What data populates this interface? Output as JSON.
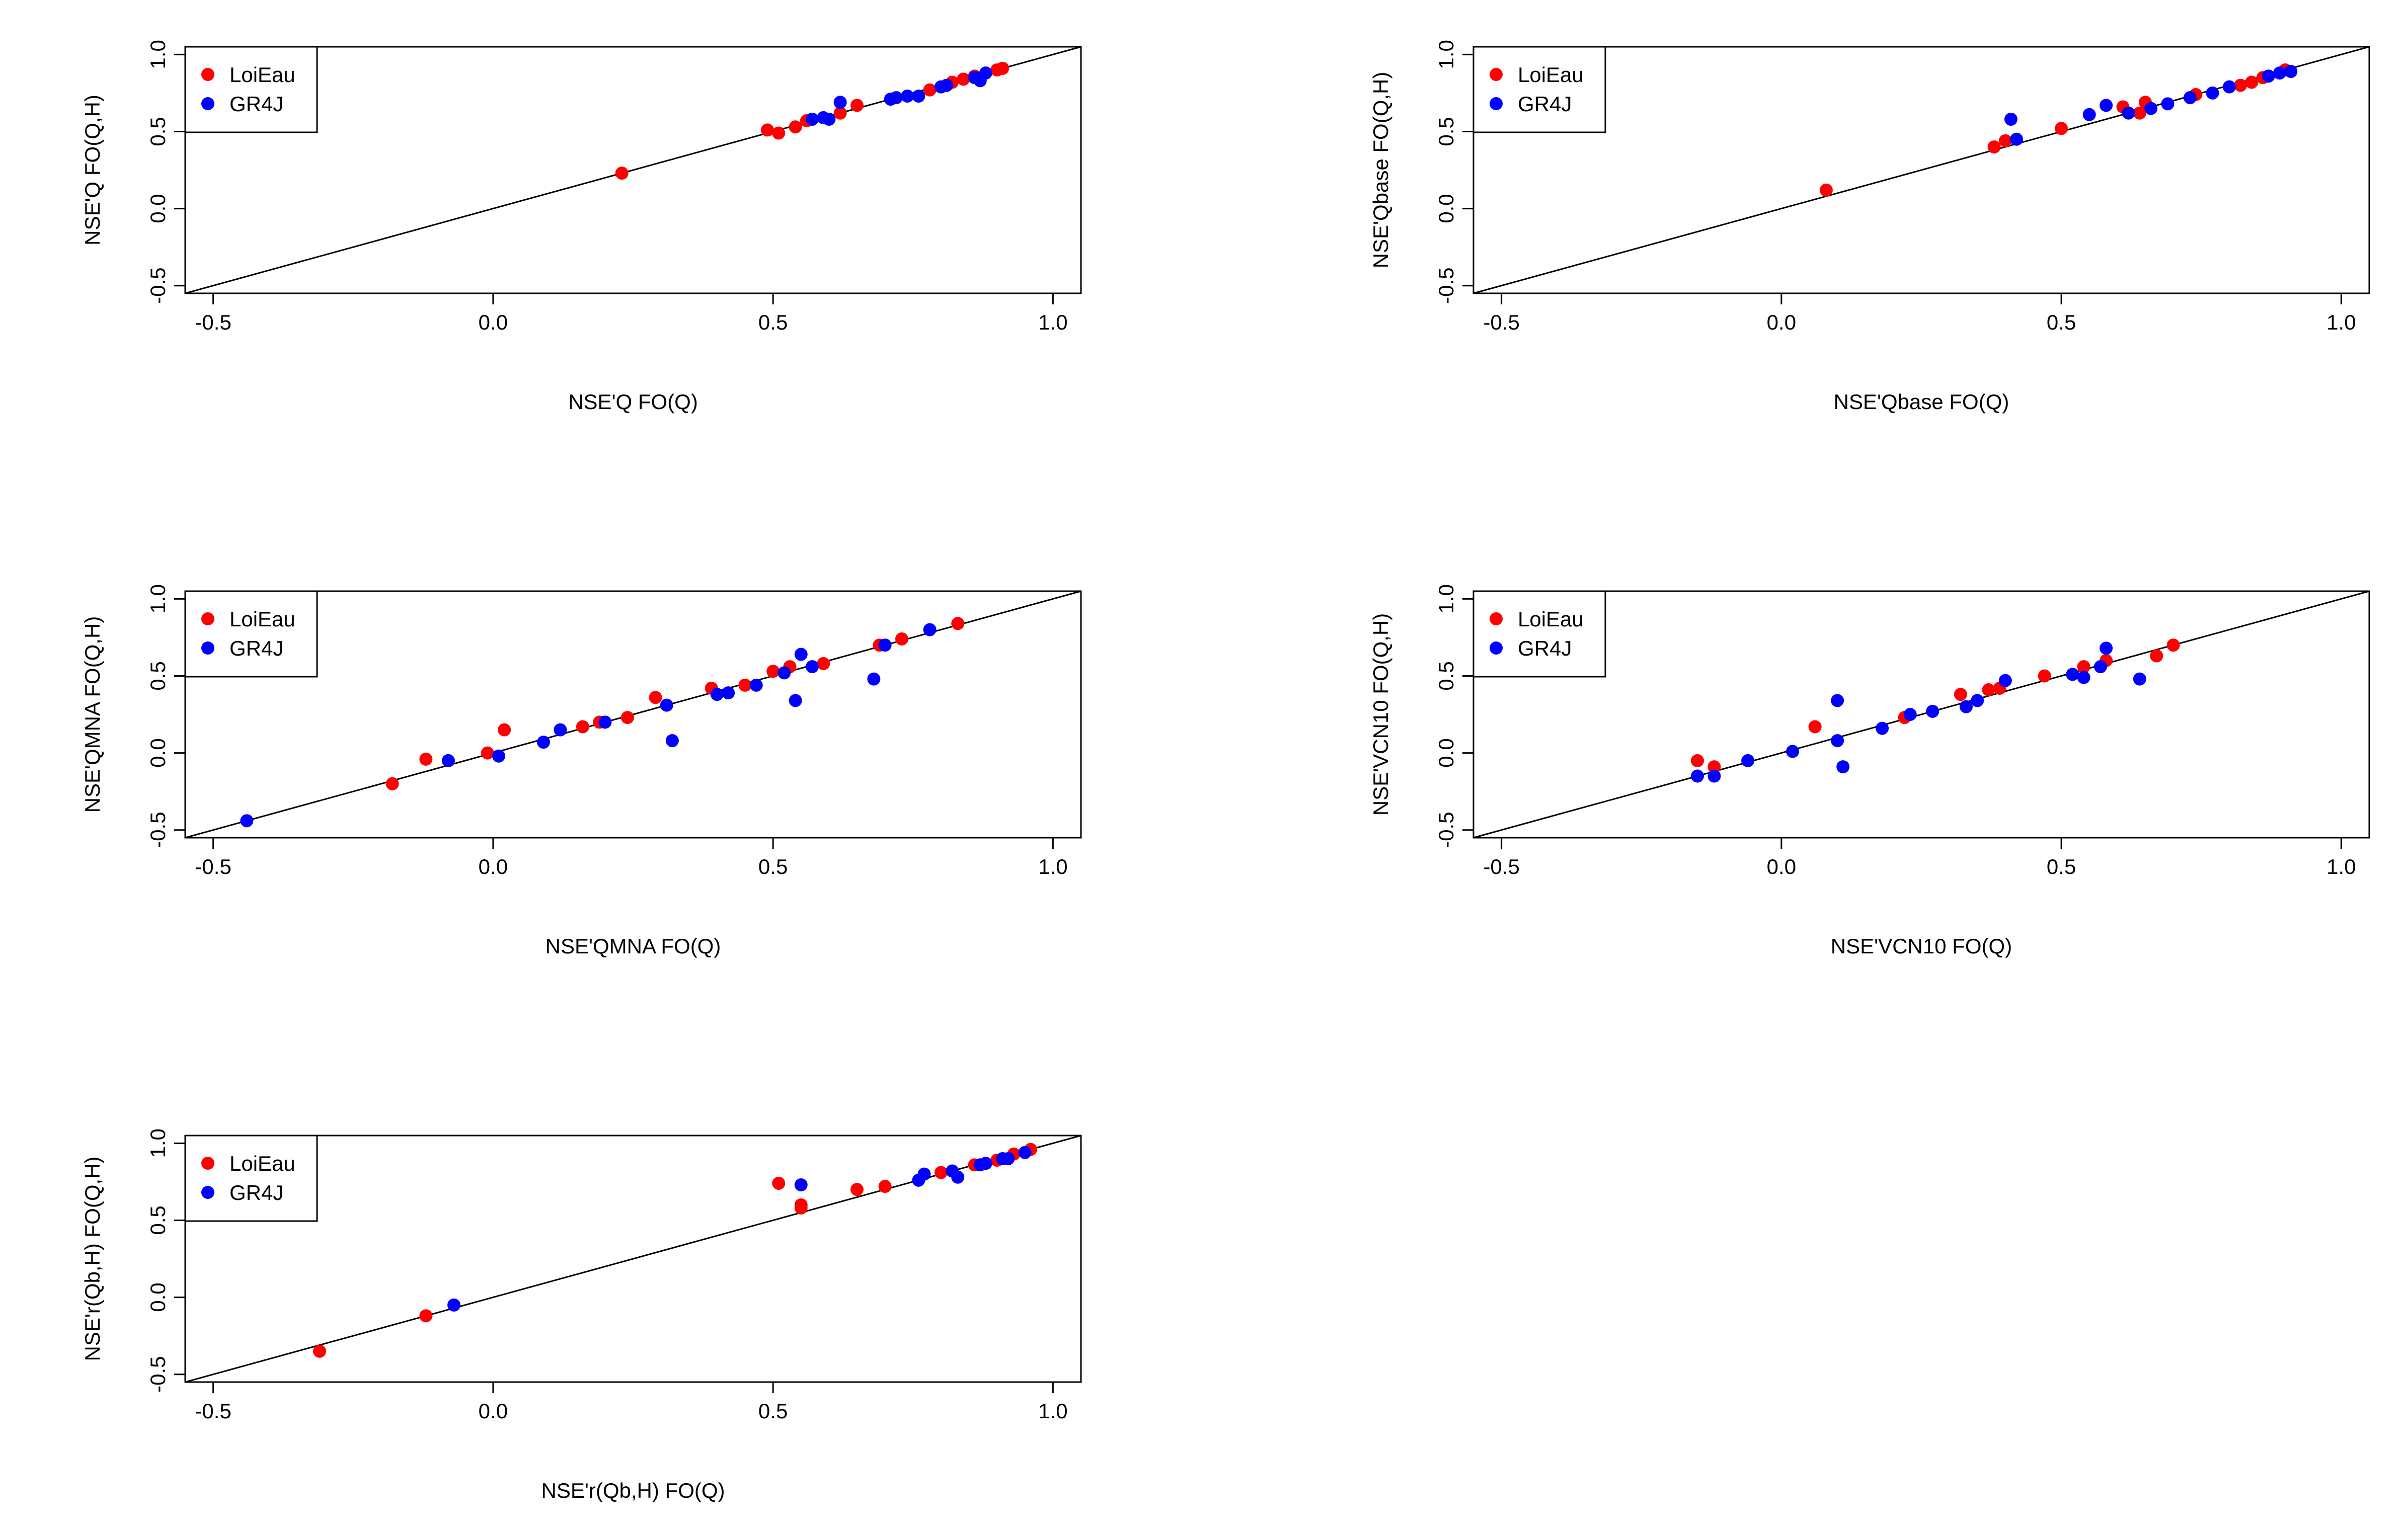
{
  "colors": {
    "LoiEau": "#ff0000",
    "GR4J": "#0000ff",
    "axis": "#000000"
  },
  "chart_data": [
    {
      "type": "scatter",
      "xlabel": "NSE'Q FO(Q)",
      "ylabel": "NSE'Q FO(Q,H)",
      "xlim": [
        -0.55,
        1.05
      ],
      "ylim": [
        -0.55,
        1.05
      ],
      "xticks": [
        "-0.5",
        "0.0",
        "0.5",
        "1.0"
      ],
      "yticks": [
        "-0.5",
        "0.0",
        "0.5",
        "1.0"
      ],
      "identity_line": true,
      "legend": {
        "position": "top-left",
        "entries": [
          "LoiEau",
          "GR4J"
        ]
      },
      "series": [
        {
          "name": "LoiEau",
          "color": "#ff0000",
          "points": [
            [
              0.23,
              0.23
            ],
            [
              0.49,
              0.51
            ],
            [
              0.51,
              0.49
            ],
            [
              0.54,
              0.53
            ],
            [
              0.56,
              0.57
            ],
            [
              0.62,
              0.62
            ],
            [
              0.65,
              0.67
            ],
            [
              0.78,
              0.77
            ],
            [
              0.82,
              0.82
            ],
            [
              0.84,
              0.84
            ],
            [
              0.86,
              0.86
            ],
            [
              0.9,
              0.9
            ],
            [
              0.91,
              0.91
            ]
          ]
        },
        {
          "name": "GR4J",
          "color": "#0000ff",
          "points": [
            [
              0.57,
              0.58
            ],
            [
              0.59,
              0.59
            ],
            [
              0.6,
              0.58
            ],
            [
              0.62,
              0.69
            ],
            [
              0.71,
              0.71
            ],
            [
              0.72,
              0.72
            ],
            [
              0.74,
              0.73
            ],
            [
              0.76,
              0.73
            ],
            [
              0.8,
              0.79
            ],
            [
              0.81,
              0.8
            ],
            [
              0.86,
              0.85
            ],
            [
              0.87,
              0.83
            ],
            [
              0.88,
              0.88
            ]
          ]
        }
      ]
    },
    {
      "type": "scatter",
      "xlabel": "NSE'Qbase FO(Q)",
      "ylabel": "NSE'Qbase FO(Q,H)",
      "xlim": [
        -0.55,
        1.05
      ],
      "ylim": [
        -0.55,
        1.05
      ],
      "xticks": [
        "-0.5",
        "0.0",
        "0.5",
        "1.0"
      ],
      "yticks": [
        "-0.5",
        "0.0",
        "0.5",
        "1.0"
      ],
      "identity_line": true,
      "legend": {
        "position": "top-left",
        "entries": [
          "LoiEau",
          "GR4J"
        ]
      },
      "series": [
        {
          "name": "LoiEau",
          "color": "#ff0000",
          "points": [
            [
              0.08,
              0.12
            ],
            [
              0.38,
              0.4
            ],
            [
              0.4,
              0.44
            ],
            [
              0.5,
              0.52
            ],
            [
              0.61,
              0.66
            ],
            [
              0.64,
              0.62
            ],
            [
              0.65,
              0.69
            ],
            [
              0.74,
              0.74
            ],
            [
              0.82,
              0.8
            ],
            [
              0.84,
              0.82
            ],
            [
              0.86,
              0.85
            ],
            [
              0.9,
              0.9
            ]
          ]
        },
        {
          "name": "GR4J",
          "color": "#0000ff",
          "points": [
            [
              0.41,
              0.58
            ],
            [
              0.42,
              0.45
            ],
            [
              0.55,
              0.61
            ],
            [
              0.58,
              0.67
            ],
            [
              0.62,
              0.62
            ],
            [
              0.66,
              0.65
            ],
            [
              0.69,
              0.68
            ],
            [
              0.73,
              0.72
            ],
            [
              0.77,
              0.75
            ],
            [
              0.8,
              0.79
            ],
            [
              0.87,
              0.86
            ],
            [
              0.89,
              0.88
            ],
            [
              0.91,
              0.89
            ]
          ]
        }
      ]
    },
    {
      "type": "scatter",
      "xlabel": "NSE'QMNA FO(Q)",
      "ylabel": "NSE'QMNA FO(Q,H)",
      "xlim": [
        -0.55,
        1.05
      ],
      "ylim": [
        -0.55,
        1.05
      ],
      "xticks": [
        "-0.5",
        "0.0",
        "0.5",
        "1.0"
      ],
      "yticks": [
        "-0.5",
        "0.0",
        "0.5",
        "1.0"
      ],
      "identity_line": true,
      "legend": {
        "position": "top-left",
        "entries": [
          "LoiEau",
          "GR4J"
        ]
      },
      "series": [
        {
          "name": "LoiEau",
          "color": "#ff0000",
          "points": [
            [
              -0.18,
              -0.2
            ],
            [
              -0.12,
              -0.04
            ],
            [
              -0.01,
              0.0
            ],
            [
              0.02,
              0.15
            ],
            [
              0.16,
              0.17
            ],
            [
              0.19,
              0.2
            ],
            [
              0.24,
              0.23
            ],
            [
              0.29,
              0.36
            ],
            [
              0.39,
              0.42
            ],
            [
              0.45,
              0.44
            ],
            [
              0.5,
              0.53
            ],
            [
              0.53,
              0.56
            ],
            [
              0.59,
              0.58
            ],
            [
              0.69,
              0.7
            ],
            [
              0.73,
              0.74
            ],
            [
              0.83,
              0.84
            ]
          ]
        },
        {
          "name": "GR4J",
          "color": "#0000ff",
          "points": [
            [
              -0.44,
              -0.44
            ],
            [
              -0.08,
              -0.05
            ],
            [
              0.01,
              -0.02
            ],
            [
              0.09,
              0.07
            ],
            [
              0.12,
              0.15
            ],
            [
              0.2,
              0.2
            ],
            [
              0.31,
              0.31
            ],
            [
              0.32,
              0.08
            ],
            [
              0.4,
              0.38
            ],
            [
              0.42,
              0.39
            ],
            [
              0.47,
              0.44
            ],
            [
              0.52,
              0.52
            ],
            [
              0.54,
              0.34
            ],
            [
              0.55,
              0.64
            ],
            [
              0.57,
              0.56
            ],
            [
              0.68,
              0.48
            ],
            [
              0.7,
              0.7
            ],
            [
              0.78,
              0.8
            ]
          ]
        }
      ]
    },
    {
      "type": "scatter",
      "xlabel": "NSE'VCN10 FO(Q)",
      "ylabel": "NSE'VCN10 FO(Q,H)",
      "xlim": [
        -0.55,
        1.05
      ],
      "ylim": [
        -0.55,
        1.05
      ],
      "xticks": [
        "-0.5",
        "0.0",
        "0.5",
        "1.0"
      ],
      "yticks": [
        "-0.5",
        "0.0",
        "0.5",
        "1.0"
      ],
      "identity_line": true,
      "legend": {
        "position": "top-left",
        "entries": [
          "LoiEau",
          "GR4J"
        ]
      },
      "series": [
        {
          "name": "LoiEau",
          "color": "#ff0000",
          "points": [
            [
              -0.15,
              -0.05
            ],
            [
              -0.12,
              -0.09
            ],
            [
              0.06,
              0.17
            ],
            [
              0.22,
              0.23
            ],
            [
              0.32,
              0.38
            ],
            [
              0.37,
              0.41
            ],
            [
              0.39,
              0.42
            ],
            [
              0.47,
              0.5
            ],
            [
              0.54,
              0.56
            ],
            [
              0.58,
              0.6
            ],
            [
              0.67,
              0.63
            ],
            [
              0.7,
              0.7
            ]
          ]
        },
        {
          "name": "GR4J",
          "color": "#0000ff",
          "points": [
            [
              -0.15,
              -0.15
            ],
            [
              -0.12,
              -0.15
            ],
            [
              -0.06,
              -0.05
            ],
            [
              0.02,
              0.01
            ],
            [
              0.1,
              0.08
            ],
            [
              0.1,
              0.34
            ],
            [
              0.11,
              -0.09
            ],
            [
              0.18,
              0.16
            ],
            [
              0.23,
              0.25
            ],
            [
              0.27,
              0.27
            ],
            [
              0.33,
              0.3
            ],
            [
              0.35,
              0.34
            ],
            [
              0.4,
              0.47
            ],
            [
              0.52,
              0.51
            ],
            [
              0.54,
              0.49
            ],
            [
              0.57,
              0.56
            ],
            [
              0.58,
              0.68
            ],
            [
              0.64,
              0.48
            ]
          ]
        }
      ]
    },
    {
      "type": "scatter",
      "xlabel": "NSE'r(Qb,H) FO(Q)",
      "ylabel": "NSE'r(Qb,H) FO(Q,H)",
      "xlim": [
        -0.55,
        1.05
      ],
      "ylim": [
        -0.55,
        1.05
      ],
      "xticks": [
        "-0.5",
        "0.0",
        "0.5",
        "1.0"
      ],
      "yticks": [
        "-0.5",
        "0.0",
        "0.5",
        "1.0"
      ],
      "identity_line": true,
      "legend": {
        "position": "top-left",
        "entries": [
          "LoiEau",
          "GR4J"
        ]
      },
      "series": [
        {
          "name": "LoiEau",
          "color": "#ff0000",
          "points": [
            [
              -0.31,
              -0.35
            ],
            [
              -0.12,
              -0.12
            ],
            [
              0.51,
              0.74
            ],
            [
              0.55,
              0.6
            ],
            [
              0.55,
              0.58
            ],
            [
              0.65,
              0.7
            ],
            [
              0.7,
              0.72
            ],
            [
              0.8,
              0.81
            ],
            [
              0.86,
              0.86
            ],
            [
              0.9,
              0.89
            ],
            [
              0.93,
              0.93
            ],
            [
              0.96,
              0.96
            ]
          ]
        },
        {
          "name": "GR4J",
          "color": "#0000ff",
          "points": [
            [
              -0.07,
              -0.05
            ],
            [
              0.55,
              0.73
            ],
            [
              0.76,
              0.76
            ],
            [
              0.77,
              0.8
            ],
            [
              0.82,
              0.82
            ],
            [
              0.83,
              0.78
            ],
            [
              0.87,
              0.86
            ],
            [
              0.88,
              0.87
            ],
            [
              0.91,
              0.9
            ],
            [
              0.92,
              0.9
            ],
            [
              0.95,
              0.94
            ]
          ]
        }
      ]
    }
  ]
}
